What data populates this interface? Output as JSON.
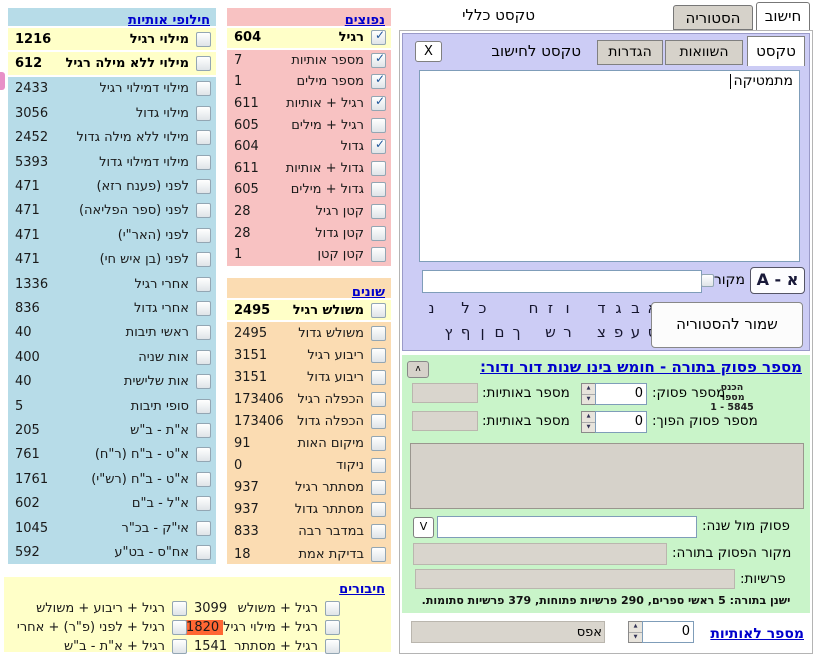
{
  "top": {
    "tab_calc": "חישוב",
    "tab_history": "הסטוריה",
    "general_text_label": "טקסט כללי"
  },
  "text_panel": {
    "tab_text": "טקסט",
    "tab_compare": "השוואות",
    "tab_settings": "הגדרות",
    "calc_text_label": "טקסט לחישוב",
    "close_label": "X",
    "textarea_value": "מתמטיקה",
    "source_label": "מקור",
    "aleph_toggle_label": "A - א",
    "save_history_label": "שמור להסטוריה",
    "letters_row1": [
      "א",
      "ב",
      "ג",
      "ד",
      "",
      "ו",
      "ז",
      "ח",
      "",
      "",
      "כ",
      "ל",
      "",
      "נ"
    ],
    "letters_row2": [
      "ס",
      "ע",
      "פ",
      "צ",
      "",
      "ר",
      "ש",
      "",
      "ך",
      "ם",
      "ן",
      "ף",
      "ץ"
    ]
  },
  "panels": {
    "letter_exchanges": {
      "title": "חילופי אותיות",
      "rows": [
        {
          "label": "מילוי רגיל",
          "value": "1216",
          "checked": false,
          "highlight": true
        },
        {
          "label": "מילוי ללא מילה רגיל",
          "value": "612",
          "checked": false,
          "highlight": true
        },
        {
          "label": "מילוי דמילוי רגיל",
          "value": "2433",
          "checked": false
        },
        {
          "label": "מילוי גדול",
          "value": "3056",
          "checked": false
        },
        {
          "label": "מילוי ללא מילה גדול",
          "value": "2452",
          "checked": false
        },
        {
          "label": "מילוי דמילוי גדול",
          "value": "5393",
          "checked": false
        },
        {
          "label": "לפני (פענח רזא)",
          "value": "471",
          "checked": false
        },
        {
          "label": "לפני (ספר הפליאה)",
          "value": "471",
          "checked": false
        },
        {
          "label": "לפני (האר\"י)",
          "value": "471",
          "checked": false
        },
        {
          "label": "לפני (בן איש חי)",
          "value": "471",
          "checked": false
        },
        {
          "label": "אחרי רגיל",
          "value": "1336",
          "checked": false
        },
        {
          "label": "אחרי גדול",
          "value": "836",
          "checked": false
        },
        {
          "label": "ראשי תיבות",
          "value": "40",
          "checked": false
        },
        {
          "label": "אות שניה",
          "value": "400",
          "checked": false
        },
        {
          "label": "אות שלישית",
          "value": "40",
          "checked": false
        },
        {
          "label": "סופי תיבות",
          "value": "5",
          "checked": false
        },
        {
          "label": "א\"ת - ב\"ש",
          "value": "205",
          "checked": false
        },
        {
          "label": "א\"ט - ב\"ח (ר\"ח)",
          "value": "761",
          "checked": false
        },
        {
          "label": "א\"ט - ב\"ח (רש\"י)",
          "value": "1761",
          "checked": false
        },
        {
          "label": "א\"ל - ב\"ם",
          "value": "602",
          "checked": false
        },
        {
          "label": "אי\"ק - בכ\"ר",
          "value": "1045",
          "checked": false
        },
        {
          "label": "אח\"ס - בט\"ע",
          "value": "592",
          "checked": false
        }
      ]
    },
    "common": {
      "title": "נפוצים",
      "rows": [
        {
          "label": "רגיל",
          "value": "604",
          "checked": true,
          "highlight": true
        },
        {
          "label": "מספר אותיות",
          "value": "7",
          "checked": true
        },
        {
          "label": "מספר מילים",
          "value": "1",
          "checked": true
        },
        {
          "label": "רגיל + אותיות",
          "value": "611",
          "checked": true
        },
        {
          "label": "רגיל + מילים",
          "value": "605",
          "checked": false
        },
        {
          "label": "גדול",
          "value": "604",
          "checked": true
        },
        {
          "label": "גדול + אותיות",
          "value": "611",
          "checked": false
        },
        {
          "label": "גדול + מילים",
          "value": "605",
          "checked": false
        },
        {
          "label": "קטן רגיל",
          "value": "28",
          "checked": false
        },
        {
          "label": "קטן גדול",
          "value": "28",
          "checked": false
        },
        {
          "label": "קטן קטן",
          "value": "1",
          "checked": false
        }
      ]
    },
    "various": {
      "title": "שונים",
      "rows": [
        {
          "label": "משולש רגיל",
          "value": "2495",
          "checked": false,
          "highlight": true
        },
        {
          "label": "משולש גדול",
          "value": "2495",
          "checked": false
        },
        {
          "label": "ריבוע רגיל",
          "value": "3151",
          "checked": false
        },
        {
          "label": "ריבוע גדול",
          "value": "3151",
          "checked": false
        },
        {
          "label": "הכפלה רגיל",
          "value": "173406",
          "checked": false
        },
        {
          "label": "הכפלה גדול",
          "value": "173406",
          "checked": false
        },
        {
          "label": "מיקום האות",
          "value": "91",
          "checked": false
        },
        {
          "label": "ניקוד",
          "value": "0",
          "checked": false
        },
        {
          "label": "מסתתר רגיל",
          "value": "937",
          "checked": false
        },
        {
          "label": "מסתתר גדול",
          "value": "937",
          "checked": false
        },
        {
          "label": "במדבר רבה",
          "value": "833",
          "checked": false
        },
        {
          "label": "בדיקת אמת",
          "value": "18",
          "checked": false
        }
      ]
    },
    "combinations": {
      "title": "חיבורים",
      "right_rows": [
        {
          "label": "רגיל + משולש",
          "value": "3099",
          "checked": false
        },
        {
          "label": "רגיל + מילוי רגיל",
          "value": "1820",
          "checked": false,
          "alert": true
        },
        {
          "label": "רגיל + מסתתר",
          "value": "1541",
          "checked": false
        }
      ],
      "left_rows": [
        {
          "label": "רגיל + ריבוע + משולש",
          "checked": false
        },
        {
          "label": "רגיל + לפני (פ\"ר) + אחרי",
          "checked": false
        },
        {
          "label": "רגיל + א\"ת - ב\"ש",
          "checked": false
        }
      ]
    }
  },
  "verse_panel": {
    "title": "מספר פסוק בתורה - חומש בינו שנות דור ודור:",
    "collapse_label": "ʌ",
    "range_note_line1": "הכנס מספר",
    "range_note_line2": "1 - 5845",
    "verse_number_label": "מספר פסוק:",
    "verse_number_value": "0",
    "in_letters_label_1": "מספר באותיות:",
    "reverse_verse_label": "מספר פסוק הפוך:",
    "reverse_verse_value": "0",
    "in_letters_label_2": "מספר באותיות:",
    "verse_vs_year_label": "פסוק מול שנה:",
    "v_button_label": "V",
    "verse_source_label": "מקור הפסוק בתורה:",
    "parashot_label": "פרשיות:",
    "torah_stats": "ישנן בתורה: 5 ראשי ספרים, 290 פרשיות פתוחות, 379 פרשיות סתומות."
  },
  "bottom_bar": {
    "number_to_letters_label": "מספר לאותיות",
    "number_value": "0",
    "result_text": "אפס"
  }
}
